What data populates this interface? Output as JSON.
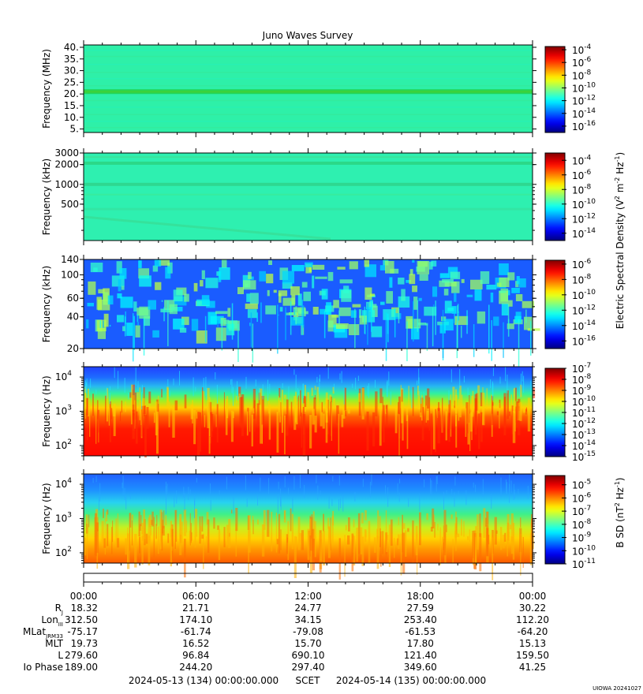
{
  "chart_data": {
    "type": "heatmap",
    "title": "Juno Waves Survey",
    "panels": [
      {
        "ylabel": "Frequency (MHz)",
        "scale": "linear",
        "ylim": [
          3.5,
          41
        ],
        "yticks": [
          "5.",
          "10.",
          "15.",
          "20.",
          "25.",
          "30.",
          "35.",
          "40."
        ],
        "ytick_values": [
          5,
          10,
          15,
          20,
          25,
          30,
          35,
          40
        ],
        "colorbar_ticks": [
          "-4",
          "-6",
          "-8",
          "-10",
          "-12",
          "-14",
          "-16"
        ],
        "colorbar_range": [
          -17,
          -3.5
        ]
      },
      {
        "ylabel": "Frequency (kHz)",
        "scale": "log",
        "ylim": [
          140,
          3000
        ],
        "yticks": [
          "500",
          "1000",
          "2000",
          "3000"
        ],
        "ytick_values": [
          500,
          1000,
          2000,
          3000
        ],
        "colorbar_ticks": [
          "-4",
          "-6",
          "-8",
          "-10",
          "-12",
          "-14"
        ],
        "colorbar_range": [
          -15,
          -3
        ]
      },
      {
        "ylabel": "Frequency (kHz)",
        "scale": "log",
        "ylim": [
          20,
          140
        ],
        "yticks": [
          "20",
          "40",
          "60",
          "100",
          "140"
        ],
        "ytick_values": [
          20,
          40,
          60,
          100,
          140
        ],
        "colorbar_ticks": [
          "-6",
          "-8",
          "-10",
          "-12",
          "-14",
          "-16"
        ],
        "colorbar_range": [
          -17,
          -5.5
        ]
      },
      {
        "ylabel": "Frequency (Hz)",
        "scale": "log",
        "ylim": [
          50,
          20000
        ],
        "yticks": [
          "2",
          "3",
          "4"
        ],
        "ytick_values": [
          100,
          1000,
          10000
        ],
        "colorbar_ticks": [
          "-7",
          "-8",
          "-9",
          "-10",
          "-11",
          "-12",
          "-13",
          "-14",
          "-15"
        ],
        "colorbar_range": [
          -15,
          -7
        ]
      },
      {
        "ylabel": "Frequency (Hz)",
        "scale": "log",
        "ylim": [
          50,
          20000
        ],
        "yticks": [
          "2",
          "3",
          "4"
        ],
        "ytick_values": [
          100,
          1000,
          10000
        ],
        "colorbar_ticks": [
          "-5",
          "-6",
          "-7",
          "-8",
          "-9",
          "-10",
          "-11"
        ],
        "colorbar_range": [
          -11,
          -4.3
        ]
      }
    ],
    "colorbar_labels": {
      "electric": "Electric Spectral Density (V",
      "magnetic": "B SD (nT"
    },
    "x_times": [
      "00:00",
      "06:00",
      "12:00",
      "18:00",
      "00:00"
    ],
    "ephemeris": [
      {
        "label": "R",
        "sub": "J",
        "values": [
          "18.32",
          "21.71",
          "24.77",
          "27.59",
          "30.22"
        ]
      },
      {
        "label": "Lon",
        "sub": "III",
        "values": [
          "312.50",
          "174.10",
          "34.15",
          "253.40",
          "112.20"
        ]
      },
      {
        "label": "MLat",
        "sub": "JRM33",
        "values": [
          "-75.17",
          "-61.74",
          "-79.08",
          "-61.53",
          "-64.20"
        ]
      },
      {
        "label": "MLT",
        "sub": "",
        "values": [
          "19.73",
          "16.52",
          "15.70",
          "17.80",
          "15.13"
        ]
      },
      {
        "label": "L",
        "sub": "",
        "values": [
          "279.60",
          "96.84",
          "690.10",
          "121.40",
          "159.50"
        ]
      },
      {
        "label": "Io Phase",
        "sub": "",
        "values": [
          "189.00",
          "244.20",
          "297.40",
          "349.60",
          "41.25"
        ]
      }
    ],
    "footer": {
      "start": "2024-05-13 (134) 00:00:00.000",
      "scet": "SCET",
      "end": "2024-05-14 (135) 00:00:00.000"
    },
    "credit": "UIOWA 20241027"
  }
}
